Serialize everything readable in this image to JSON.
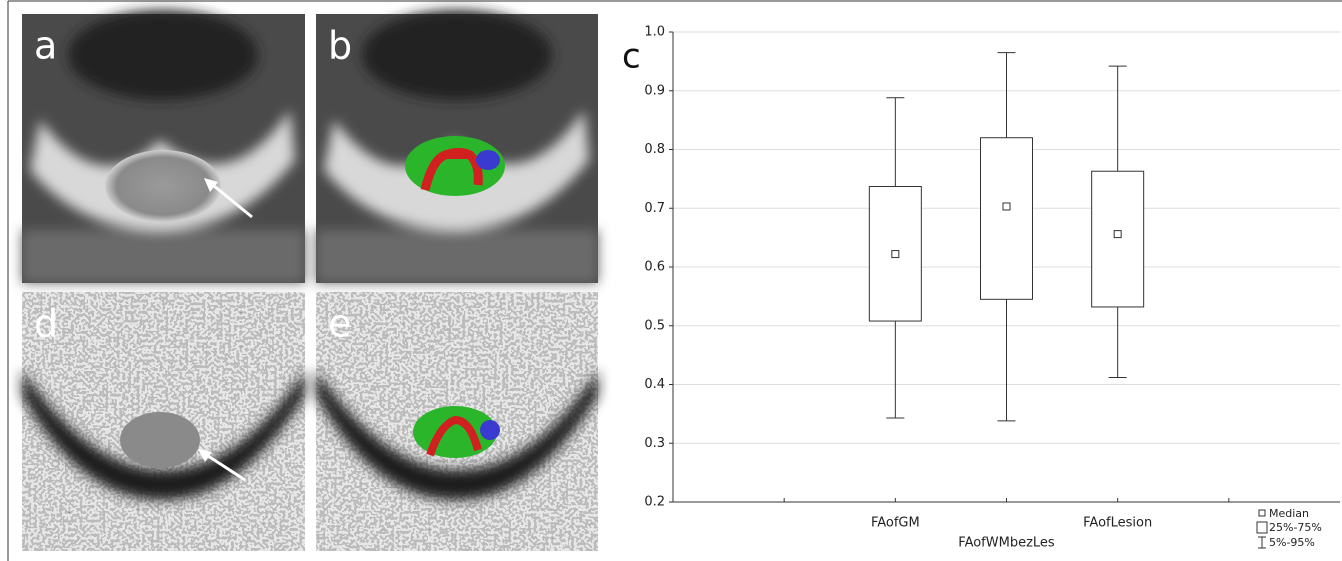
{
  "panels": [
    "a",
    "b",
    "d",
    "e"
  ],
  "chart_data": {
    "type": "box",
    "label": "c",
    "categories": [
      "FAofGM",
      "FAofWMbezLes",
      "FAofLesion"
    ],
    "boxes": [
      {
        "low": 0.343,
        "q1": 0.508,
        "median": 0.622,
        "q3": 0.737,
        "high": 0.888
      },
      {
        "low": 0.338,
        "q1": 0.545,
        "median": 0.703,
        "q3": 0.82,
        "high": 0.965
      },
      {
        "low": 0.412,
        "q1": 0.532,
        "median": 0.656,
        "q3": 0.763,
        "high": 0.942
      }
    ],
    "ylim": [
      0.2,
      1
    ],
    "yticks": [
      0.2,
      0.3,
      0.4,
      0.5,
      0.6,
      0.7,
      0.8,
      0.9,
      {
        "value": 1,
        "label": "1.0"
      }
    ],
    "grid": true,
    "legend": [
      "Median",
      "25%-75%",
      "5%-95%"
    ]
  }
}
